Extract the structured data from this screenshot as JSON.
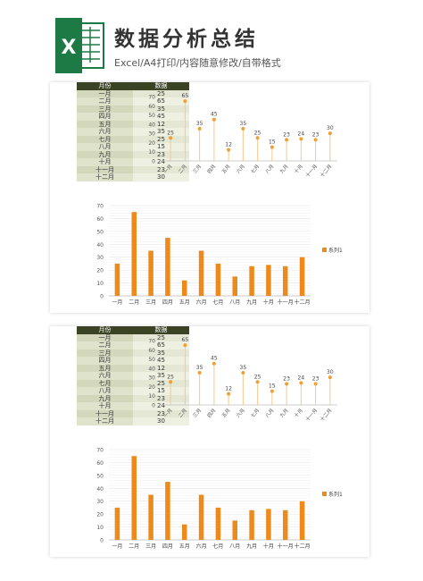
{
  "header": {
    "title": "数据分析总结",
    "subtitle": "Excel/A4打印/内容随意修改/自带格式"
  },
  "table": {
    "headers": [
      "月份",
      "数据"
    ],
    "rows": [
      [
        "一月",
        "25"
      ],
      [
        "二月",
        "65"
      ],
      [
        "三月",
        "35"
      ],
      [
        "四月",
        "45"
      ],
      [
        "五月",
        "12"
      ],
      [
        "六月",
        "35"
      ],
      [
        "七月",
        "25"
      ],
      [
        "八月",
        "15"
      ],
      [
        "九月",
        "23"
      ],
      [
        "十月",
        "24"
      ],
      [
        "十一月",
        "23"
      ],
      [
        "十二月",
        "30"
      ]
    ]
  },
  "colors": {
    "accent": "#f0a030",
    "bar": "#ec8a1c",
    "table_header": "#3a4324"
  },
  "chart_data": [
    {
      "type": "scatter",
      "categories": [
        "一月",
        "二月",
        "三月",
        "四月",
        "五月",
        "六月",
        "七月",
        "八月",
        "九月",
        "十月",
        "十一月",
        "十二月"
      ],
      "values": [
        25,
        65,
        35,
        45,
        12,
        35,
        25,
        15,
        23,
        24,
        23,
        30
      ],
      "ylim": [
        0,
        70
      ],
      "yticks": [
        "0",
        "10",
        "20",
        "30",
        "40",
        "50",
        "60",
        "70"
      ],
      "data_labels": true
    },
    {
      "type": "bar",
      "categories": [
        "一月",
        "二月",
        "三月",
        "四月",
        "五月",
        "六月",
        "七月",
        "八月",
        "九月",
        "十月",
        "十一月",
        "十二月"
      ],
      "series": [
        {
          "name": "系列1",
          "values": [
            25,
            65,
            35,
            45,
            12,
            35,
            25,
            15,
            23,
            24,
            23,
            30
          ]
        }
      ],
      "ylim": [
        0,
        70
      ],
      "yticks": [
        "0",
        "10",
        "20",
        "30",
        "40",
        "50",
        "60",
        "70"
      ],
      "grid": true,
      "legend": "right"
    }
  ]
}
